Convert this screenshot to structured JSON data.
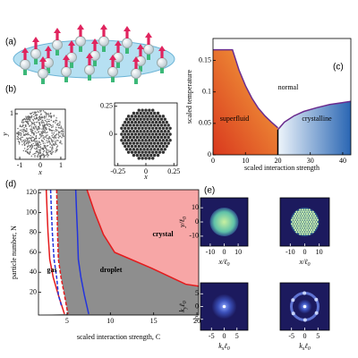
{
  "panel_labels": {
    "a": "(a)",
    "b": "(b)",
    "c": "(c)",
    "d": "(d)",
    "e": "(e)"
  },
  "panel_b": [
    {
      "xlabel": "x",
      "ylabel": "y",
      "xlim": [
        -1.22,
        1.22
      ],
      "ylim": [
        -1.22,
        1.22
      ],
      "xticks": [
        -1,
        0,
        1
      ],
      "yticks": [
        1
      ]
    },
    {
      "xlabel": "x",
      "xlim": [
        -0.28,
        0.28
      ],
      "ylim": [
        -0.28,
        0.28
      ],
      "xticks": [
        -0.25,
        0,
        0.25
      ],
      "yticks": [
        0,
        0.25
      ]
    }
  ],
  "chart_data": [
    {
      "type": "line",
      "xlabel": "scaled interaction strength",
      "ylabel": "scaled temperature",
      "xlim": [
        0,
        42.5
      ],
      "ylim": [
        0,
        0.185
      ],
      "xticks": [
        0,
        10,
        20,
        30,
        40
      ],
      "yticks": [
        0,
        0.05,
        0.1,
        0.15
      ],
      "annotations": [
        "normal",
        "superfluid",
        "crystalline"
      ],
      "series": [
        {
          "color": "#6b2d8f",
          "x": [
            0,
            6,
            8,
            10,
            12,
            14,
            16,
            18,
            20
          ],
          "values": [
            0.167,
            0.167,
            0.135,
            0.11,
            0.09,
            0.074,
            0.062,
            0.052,
            0.043
          ]
        },
        {
          "color": "#6b2d8f",
          "x": [
            20,
            22,
            25,
            28,
            32,
            36,
            40,
            42.5
          ],
          "values": [
            0.04,
            0.052,
            0.062,
            0.069,
            0.075,
            0.08,
            0.083,
            0.085
          ]
        },
        {
          "color": "#000000",
          "x": [
            20,
            20
          ],
          "values": [
            0,
            0.04
          ]
        }
      ]
    },
    {
      "type": "line",
      "xlabel": "scaled interaction strength, C",
      "ylabel": "particle number, N",
      "xlim": [
        1.7,
        20.2
      ],
      "ylim": [
        -3,
        123
      ],
      "xticks": [
        5,
        10,
        15,
        20
      ],
      "yticks": [
        20,
        40,
        60,
        80,
        100,
        120
      ],
      "annotations": [
        "gas",
        "droplet",
        "crystal"
      ],
      "series": [
        {
          "color": "#e41a1c",
          "dashed": true,
          "x": [
            3.8,
            3.85,
            3.9,
            4.0,
            4.3,
            4.7,
            5.1
          ],
          "values": [
            123,
            100,
            80,
            53,
            35,
            17,
            -2
          ]
        },
        {
          "color": "#e41a1c",
          "dashed": false,
          "x": [
            2.6,
            2.7,
            2.8,
            3.0,
            3.4,
            4.0,
            4.7
          ],
          "values": [
            123,
            100,
            80,
            53,
            35,
            17,
            -2
          ]
        },
        {
          "color": "#2233dd",
          "dashed": true,
          "x": [
            3.1,
            3.2,
            3.3,
            3.5,
            3.8,
            4.0,
            4.4
          ],
          "values": [
            123,
            100,
            80,
            53,
            35,
            17,
            5
          ]
        },
        {
          "color": "#2233dd",
          "dashed": false,
          "x": [
            6.0,
            6.1,
            6.2,
            6.3,
            6.6,
            7.0,
            7.5
          ],
          "values": [
            123,
            100,
            80,
            53,
            35,
            17,
            -2
          ]
        },
        {
          "color": "#e41a1c",
          "dashed": false,
          "x": [
            7.3,
            8.2,
            9.2,
            10.5,
            14.8,
            18.7,
            20.2
          ],
          "values": [
            123,
            100,
            78,
            60,
            44,
            28,
            26
          ]
        }
      ]
    }
  ],
  "panel_e": [
    {
      "xlabel": [
        "x/ℓ",
        "0"
      ],
      "ylabel": [
        "y/ℓ",
        "0"
      ],
      "xlim": [
        -17,
        17
      ],
      "ylim": [
        -17,
        17
      ],
      "xticks": [
        -10,
        0,
        10
      ],
      "yticks": [
        -10,
        0,
        10
      ]
    },
    {
      "xlabel": [
        "x/ℓ",
        "0"
      ],
      "xlim": [
        -17,
        17
      ],
      "ylim": [
        -17,
        17
      ],
      "xticks": [
        -10,
        0,
        10
      ]
    },
    {
      "xlabel": [
        "k",
        "x",
        "ℓ",
        "0"
      ],
      "ylabel": [
        "k",
        "y",
        "ℓ",
        "0"
      ],
      "xlim": [
        -9.3,
        9.3
      ],
      "ylim": [
        -9.3,
        9.3
      ],
      "xticks": [
        -5,
        0,
        5
      ],
      "yticks": [
        -5,
        0,
        5
      ]
    },
    {
      "xlabel": [
        "k",
        "x",
        "ℓ",
        "0"
      ],
      "xlim": [
        -9.3,
        9.3
      ],
      "ylim": [
        -9.3,
        9.3
      ],
      "xticks": [
        -5,
        0,
        5
      ]
    }
  ]
}
